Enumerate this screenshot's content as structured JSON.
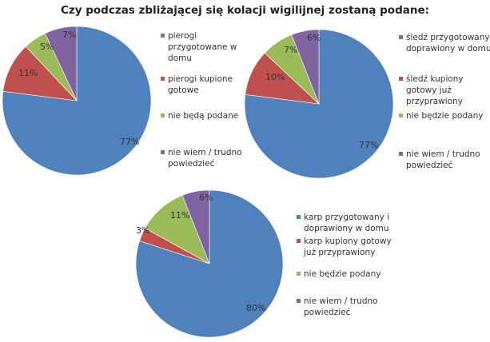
{
  "title": "Czy podczas zbliżającej się kolacji wigilijnej zostaną podane:",
  "chart_data": [
    {
      "type": "pie",
      "labels": [
        "pierogi przygotowane w domu",
        "pierogi kupione gotowe",
        "nie będą podane",
        "nie wiem / trudno powiedzieć"
      ],
      "values": [
        77,
        11,
        5,
        7
      ],
      "value_labels": [
        "77%",
        "11%",
        "5%",
        "7%"
      ],
      "colors": [
        "#4F81BD",
        "#C0504D",
        "#9BBB59",
        "#8064A2"
      ],
      "legend_lines": [
        [
          "pierogi",
          "przygotowane w",
          "domu"
        ],
        [
          "pierogi kupione",
          "gotowe"
        ],
        [
          "nie będą podane"
        ],
        [
          "nie wiem / trudno",
          "powiedzieć"
        ]
      ]
    },
    {
      "type": "pie",
      "labels": [
        "śledź przygotowany i doprawiony w domu",
        "śledź kupiony gotowy już przyprawiony",
        "nie będzie podany",
        "nie wiem / trudno powiedzieć"
      ],
      "values": [
        77,
        10,
        7,
        6
      ],
      "value_labels": [
        "77%",
        "10%",
        "7%",
        "6%"
      ],
      "colors": [
        "#4F81BD",
        "#C0504D",
        "#9BBB59",
        "#8064A2"
      ],
      "legend_lines": [
        [
          "śledź przygotowany i",
          "doprawiony w domu"
        ],
        [
          "śledź kupiony",
          "gotowy już",
          "przyprawiony"
        ],
        [
          "nie będzie podany"
        ],
        [
          "nie wiem / trudno",
          "powiedzieć"
        ]
      ]
    },
    {
      "type": "pie",
      "labels": [
        "karp przygotowany i doprawiony w domu",
        "karp kupiony gotowy już przyprawiony",
        "nie będzie podany",
        "nie wiem / trudno powiedzieć"
      ],
      "values": [
        80,
        3,
        11,
        6
      ],
      "value_labels": [
        "80%",
        "3%",
        "11%",
        "6%"
      ],
      "colors": [
        "#4F81BD",
        "#C0504D",
        "#9BBB59",
        "#8064A2"
      ],
      "legend_lines": [
        [
          "karp przygotowany i",
          "doprawiony w domu"
        ],
        [
          "karp kupiony gotowy",
          "już przyprawiony"
        ],
        [
          "nie będzie podany"
        ],
        [
          "nie wiem / trudno",
          "powiedzieć"
        ]
      ]
    }
  ]
}
